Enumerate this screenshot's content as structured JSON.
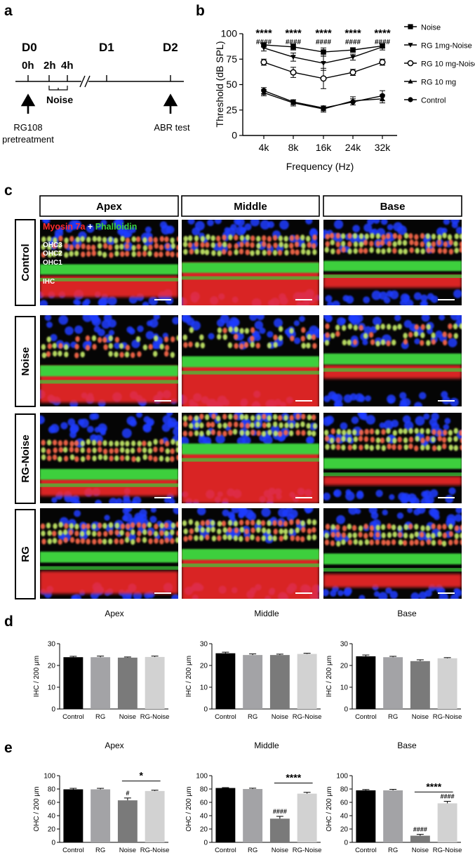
{
  "panel_letters": {
    "a": "a",
    "b": "b",
    "c": "c",
    "d": "d",
    "e": "e"
  },
  "timeline": {
    "days": [
      "D0",
      "D1",
      "D2"
    ],
    "hours": [
      "0h",
      "2h",
      "4h"
    ],
    "noise_label": "Noise",
    "pretreatment_label": [
      "RG108",
      "pretreatment"
    ],
    "abr_label": "ABR test"
  },
  "micrographs": {
    "columns": [
      "Apex",
      "Middle",
      "Base"
    ],
    "rows": [
      "Control",
      "Noise",
      "RG-Noise",
      "RG"
    ],
    "stain_legend": {
      "myosin": "Myosin 7a",
      "plus": " + ",
      "phalloidin": "Phalloidin"
    },
    "cell_labels": [
      "OHC3",
      "OHC2",
      "OHC1",
      "IHC"
    ],
    "colors": {
      "myosin": "#ff2a2a",
      "phalloidin": "#3ccf3c",
      "nuclei": "#1f3cff"
    }
  },
  "chart_data": [
    {
      "id": "b",
      "type": "line",
      "ylabel": "Threshold (dB SPL)",
      "xlabel": "Frequency (Hz)",
      "categories": [
        "4k",
        "8k",
        "16k",
        "24k",
        "32k"
      ],
      "ylim": [
        0,
        100
      ],
      "yticks": [
        "0",
        "25",
        "50",
        "75",
        "100"
      ],
      "series": [
        {
          "name": "Noise",
          "marker": "square",
          "values": [
            89,
            87,
            82,
            84,
            88
          ],
          "err": [
            2,
            3,
            4,
            2,
            2
          ]
        },
        {
          "name": "RG 1mg-Noise",
          "marker": "triangle-down",
          "values": [
            86,
            77,
            71,
            77,
            87
          ],
          "err": [
            3,
            4,
            7,
            3,
            3
          ]
        },
        {
          "name": "RG 10 mg-Noise",
          "marker": "open-circle",
          "values": [
            72,
            62,
            56,
            62,
            72
          ],
          "err": [
            3,
            5,
            10,
            3,
            3
          ]
        },
        {
          "name": "RG 10 mg",
          "marker": "triangle-up",
          "values": [
            42,
            32,
            26,
            34,
            36
          ],
          "err": [
            3,
            3,
            3,
            4,
            4
          ]
        },
        {
          "name": "Control",
          "marker": "circle",
          "values": [
            44,
            33,
            27,
            33,
            39
          ],
          "err": [
            3,
            2,
            2,
            3,
            5
          ]
        }
      ],
      "annotations": {
        "stars": "****",
        "hashes": "####"
      }
    },
    {
      "id": "d-apex",
      "type": "bar",
      "title": "Apex",
      "ylabel": "IHC / 200 μm",
      "categories": [
        "Control",
        "RG",
        "Noise",
        "RG-Noise"
      ],
      "values": [
        23.8,
        23.8,
        23.6,
        23.9
      ],
      "err": [
        0.4,
        0.5,
        0.3,
        0.4
      ],
      "ylim": [
        0,
        30
      ],
      "yticks": [
        "0",
        "10",
        "20",
        "30"
      ],
      "colors": [
        "#000000",
        "#a3a3a6",
        "#7a7a7a",
        "#d2d2d2"
      ]
    },
    {
      "id": "d-middle",
      "type": "bar",
      "title": "Middle",
      "ylabel": "IHC / 200 μm",
      "categories": [
        "Control",
        "RG",
        "Noise",
        "RG-Noise"
      ],
      "values": [
        25.6,
        24.8,
        24.8,
        25.3
      ],
      "err": [
        0.5,
        0.5,
        0.4,
        0.3
      ],
      "ylim": [
        0,
        30
      ],
      "yticks": [
        "0",
        "10",
        "20",
        "30"
      ],
      "colors": [
        "#000000",
        "#a3a3a6",
        "#7a7a7a",
        "#d2d2d2"
      ]
    },
    {
      "id": "d-base",
      "type": "bar",
      "title": "Base",
      "ylabel": "IHC / 200 μm",
      "categories": [
        "Control",
        "RG",
        "Noise",
        "RG-Noise"
      ],
      "values": [
        24.2,
        23.8,
        22.0,
        23.3
      ],
      "err": [
        0.6,
        0.4,
        0.6,
        0.3
      ],
      "ylim": [
        0,
        30
      ],
      "yticks": [
        "0",
        "10",
        "20",
        "30"
      ],
      "colors": [
        "#000000",
        "#a3a3a6",
        "#7a7a7a",
        "#d2d2d2"
      ]
    },
    {
      "id": "e-apex",
      "type": "bar",
      "title": "Apex",
      "ylabel": "OHC / 200 μm",
      "categories": [
        "Control",
        "RG",
        "Noise",
        "RG-Noise"
      ],
      "values": [
        79.5,
        79.5,
        63,
        77
      ],
      "err": [
        1.5,
        1.5,
        3.5,
        1.2
      ],
      "ylim": [
        0,
        100
      ],
      "yticks": [
        "0",
        "20",
        "40",
        "60",
        "80",
        "100"
      ],
      "colors": [
        "#000000",
        "#a3a3a6",
        "#7a7a7a",
        "#d2d2d2"
      ],
      "bar_marks": [
        "",
        "",
        "#",
        ""
      ],
      "sig": {
        "from": 2,
        "to": 3,
        "label": "*"
      }
    },
    {
      "id": "e-middle",
      "type": "bar",
      "title": "Middle",
      "ylabel": "OHC / 200 μm",
      "categories": [
        "Control",
        "RG",
        "Noise",
        "RG-Noise"
      ],
      "values": [
        81.5,
        80,
        35.5,
        73
      ],
      "err": [
        0.6,
        1.2,
        3.5,
        2.0
      ],
      "ylim": [
        0,
        100
      ],
      "yticks": [
        "0",
        "20",
        "40",
        "60",
        "80",
        "100"
      ],
      "colors": [
        "#000000",
        "#a3a3a6",
        "#7a7a7a",
        "#d2d2d2"
      ],
      "bar_marks": [
        "",
        "",
        "####",
        ""
      ],
      "sig": {
        "from": 2,
        "to": 3,
        "label": "****"
      }
    },
    {
      "id": "e-base",
      "type": "bar",
      "title": "Base",
      "ylabel": "OHC / 200 μm",
      "categories": [
        "Control",
        "RG",
        "Noise",
        "RG-Noise"
      ],
      "values": [
        78,
        78,
        10,
        58.5
      ],
      "err": [
        1.2,
        1.5,
        2.0,
        3.0
      ],
      "ylim": [
        0,
        100
      ],
      "yticks": [
        "0",
        "20",
        "40",
        "60",
        "80",
        "100"
      ],
      "colors": [
        "#000000",
        "#a3a3a6",
        "#7a7a7a",
        "#d2d2d2"
      ],
      "bar_marks": [
        "",
        "",
        "####",
        "####"
      ],
      "sig": {
        "from": 2,
        "to": 3,
        "label": "****"
      }
    }
  ]
}
